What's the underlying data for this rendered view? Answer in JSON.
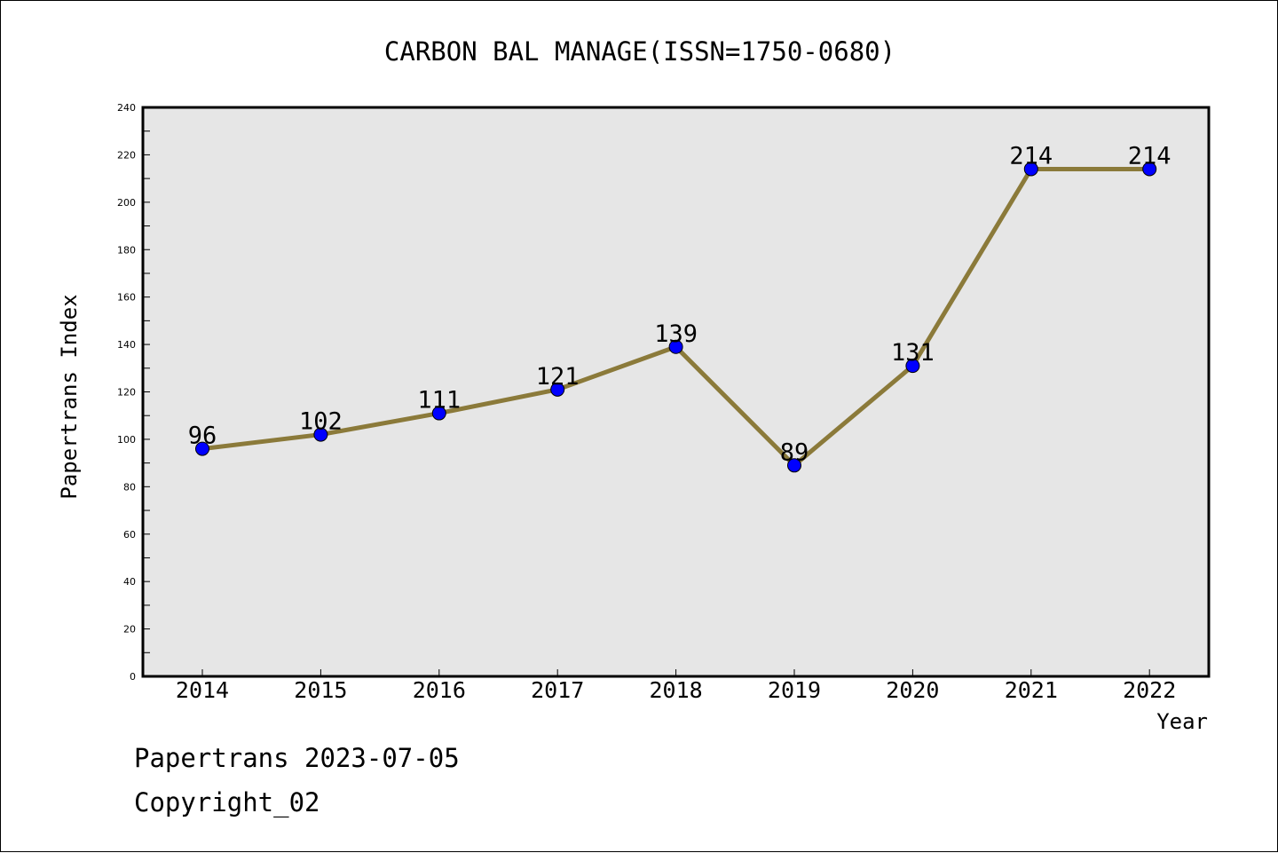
{
  "chart_data": {
    "type": "line",
    "title": "CARBON BAL MANAGE(ISSN=1750-0680)",
    "xlabel": "Year",
    "ylabel": "Papertrans Index",
    "categories": [
      "2014",
      "2015",
      "2016",
      "2017",
      "2018",
      "2019",
      "2020",
      "2021",
      "2022"
    ],
    "values": [
      96,
      102,
      111,
      121,
      139,
      89,
      131,
      214,
      214
    ],
    "data_labels": [
      "96",
      "102",
      "111",
      "121",
      "139",
      "89",
      "131",
      "214",
      "214"
    ],
    "ylim": [
      0,
      240
    ],
    "yticks": [
      "0",
      "20",
      "40",
      "60",
      "80",
      "100",
      "120",
      "140",
      "160",
      "180",
      "200",
      "220",
      "240"
    ],
    "grid": false,
    "colors": {
      "line": "#8b7a3a",
      "marker": "#0000ff",
      "plot_background": "#e6e6e6"
    }
  },
  "footer": {
    "date_line": "Papertrans 2023-07-05",
    "copyright_line": "Copyright_02"
  }
}
